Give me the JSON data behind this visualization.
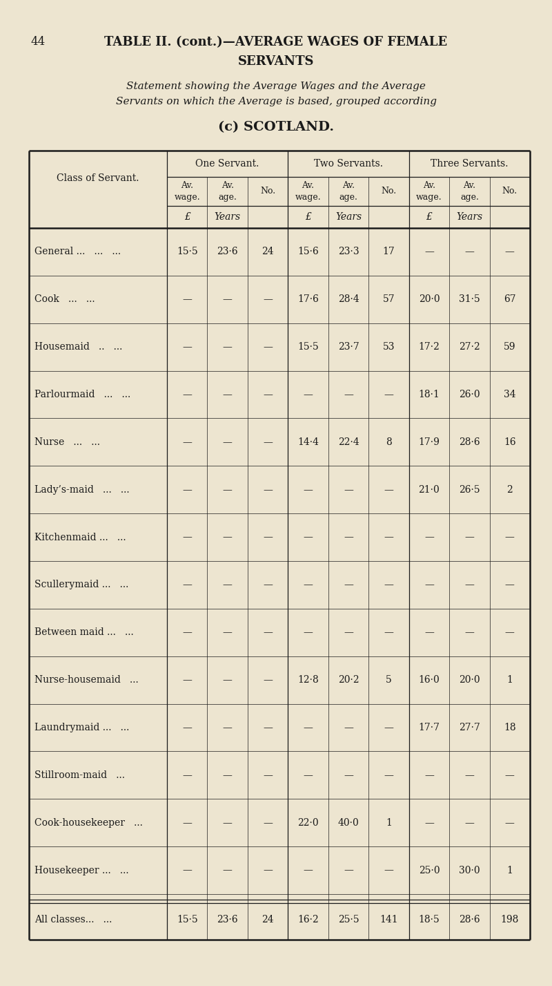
{
  "page_number": "44",
  "title_line1": "TABLE II. (cont.)—AVERAGE WAGES OF FEMALE",
  "title_line2": "SERVANTS",
  "subtitle_line1": "Statement showing the Average Wages and the Average",
  "subtitle_line2": "Servants on which the Average is based, grouped according",
  "section_title": "(c) SCOTLAND.",
  "bg_color": "#ede5d0",
  "text_color": "#1a1a1a",
  "col_groups": [
    "One Servant.",
    "Two Servants.",
    "Three Servants."
  ],
  "sub_labels": [
    "Av.\nwage.",
    "Av.\nage.",
    "No."
  ],
  "unit_vals": [
    "£",
    "Years",
    "",
    "£",
    "Years",
    "",
    "£",
    "Years",
    ""
  ],
  "servant_classes": [
    "General ...",
    "Cook",
    "Housemaid",
    "Parlourmaid",
    "Nurse",
    "Lady’s-maid",
    "Kitchenmaid ...",
    "Scullerymaid ...",
    "Between maid ...",
    "Nurse-housemaid",
    "Laundrymaid ...",
    "Stillroom-maid",
    "Cook-housekeeper",
    "Housekeeper ..."
  ],
  "servant_dots": [
    "   ...   ...",
    "   ...   ...",
    "   ..   ...",
    "   ...   ...",
    "   ...   ...",
    "   ...   ...",
    "   ...",
    "   ...",
    "   ...",
    "   ...",
    "   ...",
    "   ...",
    "   ...",
    "   ..."
  ],
  "data": [
    [
      "15·5",
      "23·6",
      "24",
      "15·6",
      "23·3",
      "17",
      "—",
      "—",
      "—"
    ],
    [
      "—",
      "—",
      "—",
      "17·6",
      "28·4",
      "57",
      "20·0",
      "31·5",
      "67"
    ],
    [
      "—",
      "—",
      "—",
      "15·5",
      "23·7",
      "53",
      "17·2",
      "27·2",
      "59"
    ],
    [
      "—",
      "—",
      "—",
      "—",
      "—",
      "—",
      "18·1",
      "26·0",
      "34"
    ],
    [
      "—",
      "—",
      "—",
      "14·4",
      "22·4",
      "8",
      "17·9",
      "28·6",
      "16"
    ],
    [
      "—",
      "—",
      "—",
      "—",
      "—",
      "—",
      "21·0",
      "26·5",
      "2"
    ],
    [
      "—",
      "—",
      "—",
      "—",
      "—",
      "—",
      "—",
      "—",
      "—"
    ],
    [
      "—",
      "—",
      "—",
      "—",
      "—",
      "—",
      "—",
      "—",
      "—"
    ],
    [
      "—",
      "—",
      "—",
      "—",
      "—",
      "—",
      "—",
      "—",
      "—"
    ],
    [
      "—",
      "—",
      "—",
      "12·8",
      "20·2",
      "5",
      "16·0",
      "20·0",
      "1"
    ],
    [
      "—",
      "—",
      "—",
      "—",
      "—",
      "—",
      "17·7",
      "27·7",
      "18"
    ],
    [
      "—",
      "—",
      "—",
      "—",
      "—",
      "—",
      "—",
      "—",
      "—"
    ],
    [
      "—",
      "—",
      "—",
      "22·0",
      "40·0",
      "1",
      "—",
      "—",
      "—"
    ],
    [
      "—",
      "—",
      "—",
      "—",
      "—",
      "—",
      "25·0",
      "30·0",
      "1"
    ]
  ],
  "footer_label": "All classes...",
  "footer_dots": "   ...",
  "footer_data": [
    "15·5",
    "23·6",
    "24",
    "16·2",
    "25·5",
    "141",
    "18·5",
    "28·6",
    "198"
  ]
}
